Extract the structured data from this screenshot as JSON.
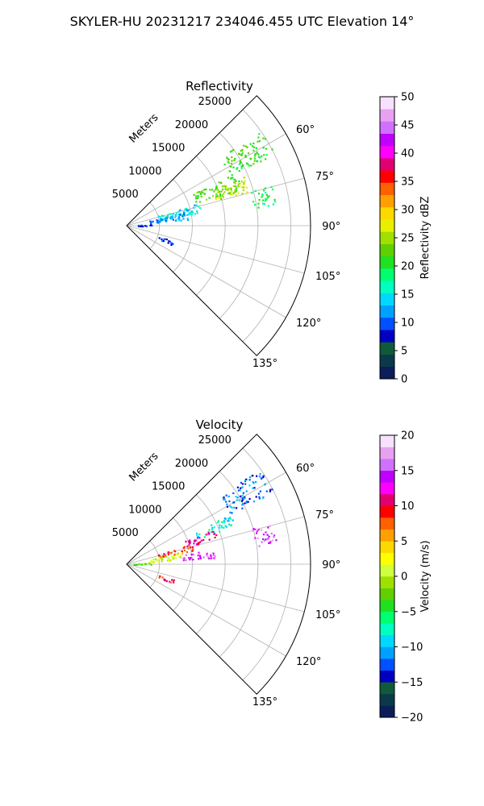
{
  "figure": {
    "title": "SKYLER-HU  20231217  234046.455 UTC Elevation 14°"
  },
  "chart_data": [
    {
      "type": "heatmap",
      "projection": "polar-sector",
      "title": "Reflectivity",
      "range_label": "Meters",
      "range_ticks": [
        5000,
        10000,
        15000,
        20000,
        25000
      ],
      "range_max": 28000,
      "azimuth_range": [
        45,
        135
      ],
      "azimuth_ticks": [
        "60°",
        "75°",
        "90°",
        "105°",
        "120°",
        "135°"
      ],
      "grid": true,
      "colorbar": {
        "label": "Reflectivity dBZ",
        "min": 0,
        "max": 50,
        "ticks": [
          "0",
          "5",
          "10",
          "15",
          "20",
          "25",
          "30",
          "35",
          "40",
          "45",
          "50"
        ],
        "colors": [
          "#0b1e5a",
          "#0a3a4a",
          "#0f5a3a",
          "#0000c0",
          "#0050ff",
          "#00a0ff",
          "#00d8ff",
          "#00ffc0",
          "#00ff70",
          "#20e020",
          "#60d000",
          "#a0e000",
          "#e8f000",
          "#ffd800",
          "#ffa000",
          "#ff6000",
          "#ff0000",
          "#e00070",
          "#ff00ff",
          "#c000ff",
          "#d070ff",
          "#e8a0f0",
          "#f8e0ff"
        ]
      },
      "echo_regions": [
        {
          "az": [
            54,
            64
          ],
          "range": [
            17500,
            25000
          ],
          "value": 21
        },
        {
          "az": [
            64,
            72
          ],
          "range": [
            11000,
            19000
          ],
          "value": 22
        },
        {
          "az": [
            67,
            74
          ],
          "range": [
            14000,
            19500
          ],
          "value": 26
        },
        {
          "az": [
            72,
            80
          ],
          "range": [
            5000,
            11500
          ],
          "value": 15
        },
        {
          "az": [
            77,
            84
          ],
          "range": [
            3500,
            9500
          ],
          "value": 12
        },
        {
          "az": [
            74,
            82
          ],
          "range": [
            19500,
            23000
          ],
          "value": 19
        },
        {
          "az": [
            85,
            90
          ],
          "range": [
            1000,
            4000
          ],
          "value": 9
        },
        {
          "az": [
            108,
            113
          ],
          "range": [
            5000,
            7500
          ],
          "value": 9
        }
      ]
    },
    {
      "type": "heatmap",
      "projection": "polar-sector",
      "title": "Velocity",
      "range_label": "Meters",
      "range_ticks": [
        5000,
        10000,
        15000,
        20000,
        25000
      ],
      "range_max": 28000,
      "azimuth_range": [
        45,
        135
      ],
      "azimuth_ticks": [
        "60°",
        "75°",
        "90°",
        "105°",
        "120°",
        "135°"
      ],
      "grid": true,
      "colorbar": {
        "label": "Velocity (m/s)",
        "min": -20,
        "max": 20,
        "ticks": [
          "−20",
          "−15",
          "−10",
          "−5",
          "0",
          "5",
          "10",
          "15",
          "20"
        ],
        "colors": [
          "#0b1e5a",
          "#0a3a4a",
          "#0f5a3a",
          "#0000c0",
          "#0050ff",
          "#00a0ff",
          "#00d8ff",
          "#00ffc0",
          "#00ff70",
          "#20e020",
          "#60d000",
          "#a0e000",
          "#d0ff40",
          "#ffff00",
          "#ffd800",
          "#ffa000",
          "#ff6000",
          "#ff0000",
          "#e00070",
          "#ff00ff",
          "#c000ff",
          "#d070ff",
          "#e8a0f0",
          "#f8e0ff"
        ]
      },
      "echo_regions": [
        {
          "az": [
            54,
            64
          ],
          "range": [
            17500,
            25000
          ],
          "value": -12
        },
        {
          "az": [
            64,
            70
          ],
          "range": [
            11500,
            17500
          ],
          "value": -8
        },
        {
          "az": [
            68,
            74
          ],
          "range": [
            9500,
            14500
          ],
          "value": 12
        },
        {
          "az": [
            72,
            78
          ],
          "range": [
            5000,
            10500
          ],
          "value": 9
        },
        {
          "az": [
            77,
            84
          ],
          "range": [
            3500,
            8500
          ],
          "value": 1
        },
        {
          "az": [
            80,
            86
          ],
          "range": [
            8500,
            13500
          ],
          "value": 14
        },
        {
          "az": [
            74,
            82
          ],
          "range": [
            19500,
            23000
          ],
          "value": 15
        },
        {
          "az": [
            85,
            90
          ],
          "range": [
            1000,
            4000
          ],
          "value": -3
        },
        {
          "az": [
            108,
            113
          ],
          "range": [
            5000,
            7500
          ],
          "value": 10
        }
      ]
    }
  ]
}
